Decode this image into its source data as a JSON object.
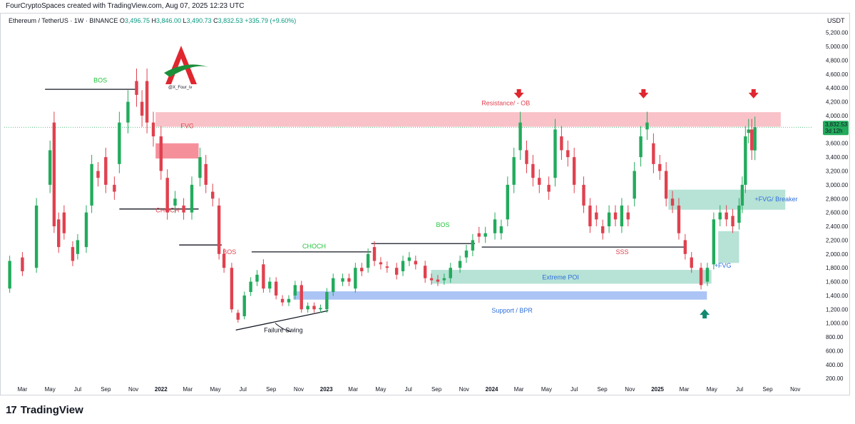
{
  "header": {
    "credit": "FourCryptoSpaces created with TradingView.com, Aug 07, 2025 12:23 UTC",
    "symbol": "Ethereum / TetherUS · 1W · BINANCE",
    "open_label": "O",
    "open": "3,496.75",
    "high_label": "H",
    "high": "3,846.00",
    "low_label": "L",
    "low": "3,490.73",
    "close_label": "C",
    "close": "3,832.53",
    "change": "+335.79 (+9.60%)",
    "currency": "USDT"
  },
  "logo": {
    "handle": "@X_Four_iv"
  },
  "price_tag": {
    "price": "3,832.53",
    "countdown": "3d 12h"
  },
  "footer": {
    "brand": "TradingView",
    "brand_mark": "17"
  },
  "colors": {
    "up": "#22ab5c",
    "down": "#e0414f",
    "resistance": "#f7a8b0",
    "fvg_zone": "#f26b7a",
    "support": "#8fb0f2",
    "poi": "#9fd8c8",
    "label_green": "#22c43c",
    "label_red": "#e0414f",
    "label_blue": "#2f6fdb"
  },
  "chart_data": {
    "type": "candlestick",
    "title": "",
    "xlabel": "",
    "ylabel": "",
    "ylim": [
      120,
      5300
    ],
    "y_ticks": [
      200,
      400,
      600,
      800,
      1000,
      1200,
      1400,
      1600,
      1800,
      2000,
      2200,
      2400,
      2600,
      2800,
      3000,
      3200,
      3400,
      3600,
      3800,
      4000,
      4200,
      4400,
      4600,
      4800,
      5000,
      5200
    ],
    "y_tick_labels": [
      "200.00",
      "400.00",
      "600.00",
      "800.00",
      "1,000.00",
      "1,200.00",
      "1,400.00",
      "1,600.00",
      "1,800.00",
      "2,000.00",
      "2,200.00",
      "2,400.00",
      "2,600.00",
      "2,800.00",
      "3,000.00",
      "3,200.00",
      "3,400.00",
      "3,600.00",
      "3,800.00",
      "4,000.00",
      "4,200.00",
      "4,400.00",
      "4,600.00",
      "4,800.00",
      "5,000.00",
      "5,200.00"
    ],
    "x_ticks": [
      {
        "label": "Mar",
        "x": "2021-03-01"
      },
      {
        "label": "May",
        "x": "2021-05-01"
      },
      {
        "label": "Jul",
        "x": "2021-07-01"
      },
      {
        "label": "Sep",
        "x": "2021-09-01"
      },
      {
        "label": "Nov",
        "x": "2021-11-01"
      },
      {
        "label": "2022",
        "x": "2022-01-01",
        "bold": true
      },
      {
        "label": "Mar",
        "x": "2022-03-01"
      },
      {
        "label": "May",
        "x": "2022-05-01"
      },
      {
        "label": "Jul",
        "x": "2022-07-01"
      },
      {
        "label": "Sep",
        "x": "2022-09-01"
      },
      {
        "label": "Nov",
        "x": "2022-11-01"
      },
      {
        "label": "2023",
        "x": "2023-01-01",
        "bold": true
      },
      {
        "label": "Mar",
        "x": "2023-03-01"
      },
      {
        "label": "May",
        "x": "2023-05-01"
      },
      {
        "label": "Jul",
        "x": "2023-07-01"
      },
      {
        "label": "Sep",
        "x": "2023-09-01"
      },
      {
        "label": "Nov",
        "x": "2023-11-01"
      },
      {
        "label": "2024",
        "x": "2024-01-01",
        "bold": true
      },
      {
        "label": "Mar",
        "x": "2024-03-01"
      },
      {
        "label": "May",
        "x": "2024-05-01"
      },
      {
        "label": "Jul",
        "x": "2024-07-01"
      },
      {
        "label": "Sep",
        "x": "2024-09-01"
      },
      {
        "label": "Nov",
        "x": "2024-11-01"
      },
      {
        "label": "2025",
        "x": "2025-01-01",
        "bold": true
      },
      {
        "label": "Mar",
        "x": "2025-03-01"
      },
      {
        "label": "May",
        "x": "2025-05-01"
      },
      {
        "label": "Jul",
        "x": "2025-07-01"
      },
      {
        "label": "Sep",
        "x": "2025-09-01"
      },
      {
        "label": "Nov",
        "x": "2025-11-01"
      }
    ],
    "series": [
      {
        "candles": [
          [
            "2021-02-01",
            1500,
            1900
          ],
          [
            "2021-03-01",
            1950,
            1750
          ],
          [
            "2021-04-01",
            1800,
            2700
          ],
          [
            "2021-05-01",
            3000,
            3500
          ],
          [
            "2021-05-10",
            3900,
            2400
          ],
          [
            "2021-05-20",
            2500,
            2100
          ],
          [
            "2021-06-01",
            2600,
            2300
          ],
          [
            "2021-06-20",
            2100,
            1900
          ],
          [
            "2021-07-01",
            2000,
            2200
          ],
          [
            "2021-07-20",
            2100,
            2600
          ],
          [
            "2021-08-01",
            2700,
            3300
          ],
          [
            "2021-08-15",
            3200,
            3100
          ],
          [
            "2021-09-01",
            3400,
            3000
          ],
          [
            "2021-09-20",
            3000,
            2900
          ],
          [
            "2021-10-01",
            3300,
            3900
          ],
          [
            "2021-10-20",
            3900,
            4200
          ],
          [
            "2021-11-08",
            4500,
            4300
          ],
          [
            "2021-11-20",
            4200,
            4000
          ],
          [
            "2021-12-01",
            4500,
            3900
          ],
          [
            "2021-12-15",
            3900,
            3700
          ],
          [
            "2022-01-01",
            3700,
            3200
          ],
          [
            "2022-01-15",
            3100,
            2600
          ],
          [
            "2022-02-01",
            2700,
            2800
          ],
          [
            "2022-02-20",
            2700,
            2600
          ],
          [
            "2022-03-10",
            2600,
            3000
          ],
          [
            "2022-03-28",
            3100,
            3400
          ],
          [
            "2022-04-10",
            3300,
            3000
          ],
          [
            "2022-04-25",
            2900,
            2800
          ],
          [
            "2022-05-09",
            2700,
            2000
          ],
          [
            "2022-05-20",
            2000,
            1800
          ],
          [
            "2022-06-06",
            1800,
            1200
          ],
          [
            "2022-06-20",
            1150,
            1050
          ],
          [
            "2022-07-04",
            1100,
            1400
          ],
          [
            "2022-07-18",
            1450,
            1600
          ],
          [
            "2022-08-01",
            1600,
            1700
          ],
          [
            "2022-08-15",
            1850,
            1500
          ],
          [
            "2022-08-29",
            1500,
            1600
          ],
          [
            "2022-09-12",
            1600,
            1400
          ],
          [
            "2022-09-26",
            1350,
            1300
          ],
          [
            "2022-10-10",
            1300,
            1350
          ],
          [
            "2022-10-24",
            1400,
            1550
          ],
          [
            "2022-11-07",
            1550,
            1200
          ],
          [
            "2022-11-21",
            1200,
            1250
          ],
          [
            "2022-12-05",
            1250,
            1200
          ],
          [
            "2022-12-19",
            1200,
            1220
          ],
          [
            "2023-01-02",
            1200,
            1450
          ],
          [
            "2023-01-16",
            1450,
            1650
          ],
          [
            "2023-02-06",
            1600,
            1650
          ],
          [
            "2023-02-20",
            1650,
            1600
          ],
          [
            "2023-03-06",
            1500,
            1800
          ],
          [
            "2023-03-20",
            1800,
            1750
          ],
          [
            "2023-04-03",
            1800,
            2000
          ],
          [
            "2023-04-17",
            2100,
            1900
          ],
          [
            "2023-05-01",
            1880,
            1850
          ],
          [
            "2023-05-15",
            1820,
            1800
          ],
          [
            "2023-06-05",
            1800,
            1700
          ],
          [
            "2023-06-19",
            1750,
            1900
          ],
          [
            "2023-07-03",
            1900,
            1950
          ],
          [
            "2023-07-17",
            1900,
            1850
          ],
          [
            "2023-08-07",
            1830,
            1650
          ],
          [
            "2023-08-21",
            1650,
            1620
          ],
          [
            "2023-09-04",
            1630,
            1600
          ],
          [
            "2023-09-18",
            1620,
            1650
          ],
          [
            "2023-10-02",
            1650,
            1800
          ],
          [
            "2023-10-23",
            1800,
            1900
          ],
          [
            "2023-11-06",
            1950,
            2050
          ],
          [
            "2023-11-20",
            2050,
            2200
          ],
          [
            "2023-12-04",
            2300,
            2250
          ],
          [
            "2023-12-18",
            2250,
            2300
          ],
          [
            "2024-01-08",
            2300,
            2500
          ],
          [
            "2024-01-22",
            2300,
            2400
          ],
          [
            "2024-02-05",
            2500,
            3000
          ],
          [
            "2024-02-19",
            3000,
            3400
          ],
          [
            "2024-03-04",
            3500,
            3900
          ],
          [
            "2024-03-18",
            3500,
            3300
          ],
          [
            "2024-04-01",
            3300,
            3100
          ],
          [
            "2024-04-15",
            3100,
            3000
          ],
          [
            "2024-05-06",
            3000,
            2900
          ],
          [
            "2024-05-20",
            3100,
            3800
          ],
          [
            "2024-06-03",
            3700,
            3500
          ],
          [
            "2024-06-17",
            3500,
            3400
          ],
          [
            "2024-07-01",
            3400,
            3000
          ],
          [
            "2024-07-22",
            3000,
            2700
          ],
          [
            "2024-08-05",
            2700,
            2400
          ],
          [
            "2024-08-19",
            2600,
            2500
          ],
          [
            "2024-09-02",
            2400,
            2300
          ],
          [
            "2024-09-16",
            2400,
            2600
          ],
          [
            "2024-09-30",
            2600,
            2500
          ],
          [
            "2024-10-14",
            2400,
            2700
          ],
          [
            "2024-10-28",
            2600,
            2500
          ],
          [
            "2024-11-11",
            2800,
            3200
          ],
          [
            "2024-11-25",
            3400,
            3700
          ],
          [
            "2024-12-09",
            3800,
            3900
          ],
          [
            "2024-12-23",
            3600,
            3300
          ],
          [
            "2025-01-06",
            3300,
            3200
          ],
          [
            "2025-01-20",
            3200,
            2800
          ],
          [
            "2025-02-03",
            2800,
            2700
          ],
          [
            "2025-02-17",
            2700,
            2300
          ],
          [
            "2025-03-03",
            2200,
            2000
          ],
          [
            "2025-03-17",
            1950,
            1800
          ],
          [
            "2025-04-07",
            1800,
            1550
          ],
          [
            "2025-04-21",
            1600,
            1800
          ],
          [
            "2025-05-05",
            1850,
            2500
          ],
          [
            "2025-05-19",
            2500,
            2600
          ],
          [
            "2025-06-02",
            2600,
            2500
          ],
          [
            "2025-06-16",
            2550,
            2400
          ],
          [
            "2025-06-30",
            2450,
            2700
          ],
          [
            "2025-07-07",
            2700,
            3000
          ],
          [
            "2025-07-14",
            3000,
            3700
          ],
          [
            "2025-07-21",
            3750,
            3800
          ],
          [
            "2025-07-28",
            3800,
            3500
          ],
          [
            "2025-08-04",
            3496.75,
            3832.53
          ]
        ]
      }
    ],
    "annotations": [
      {
        "text": "BOS",
        "color": "green",
        "x": "2021-08-20",
        "y": 4480
      },
      {
        "text": "FVG",
        "color": "red",
        "x": "2022-02-28",
        "y": 3820
      },
      {
        "text": "CHOCH",
        "color": "red",
        "x": "2022-01-15",
        "y": 2600
      },
      {
        "text": "BOS",
        "color": "red",
        "x": "2022-06-01",
        "y": 2000
      },
      {
        "text": "CHOCH",
        "color": "green",
        "x": "2022-12-05",
        "y": 2080
      },
      {
        "text": "BOS",
        "color": "green",
        "x": "2023-09-15",
        "y": 2390
      },
      {
        "text": "SSS",
        "color": "red",
        "x": "2024-10-15",
        "y": 2000
      },
      {
        "text": "Resistance/ - OB",
        "color": "red",
        "x": "2024-02-01",
        "y": 4150
      },
      {
        "text": "Extreme POI",
        "color": "blue",
        "x": "2024-06-01",
        "y": 1630
      },
      {
        "text": "Support / BPR",
        "color": "blue",
        "x": "2024-02-15",
        "y": 1150
      },
      {
        "text": "+FVG/ Breaker",
        "color": "blue",
        "x": "2025-09-20",
        "y": 2760
      },
      {
        "text": "+FVG",
        "color": "blue",
        "x": "2025-05-25",
        "y": 1800
      },
      {
        "text": "Failure Swing",
        "color": "black",
        "x": "2022-09-28",
        "y": 870
      }
    ],
    "zones": [
      {
        "name": "resistance",
        "x0": "2021-12-20",
        "x1": "2025-09-30",
        "y0": 3840,
        "y1": 4050
      },
      {
        "name": "fvg",
        "x0": "2021-12-20",
        "x1": "2022-03-25",
        "y0": 3380,
        "y1": 3600
      },
      {
        "name": "poi",
        "x0": "2023-08-20",
        "x1": "2025-04-30",
        "y0": 1570,
        "y1": 1770
      },
      {
        "name": "support",
        "x0": "2022-10-20",
        "x1": "2025-04-20",
        "y0": 1340,
        "y1": 1460
      },
      {
        "name": "breaker",
        "x0": "2025-01-25",
        "x1": "2025-10-10",
        "y0": 2640,
        "y1": 2930
      },
      {
        "name": "plus_fvg",
        "x0": "2025-05-15",
        "x1": "2025-06-30",
        "y0": 1870,
        "y1": 2330
      }
    ],
    "lines": [
      {
        "name": "bos-line-2021",
        "x0": "2021-04-20",
        "x1": "2021-11-05",
        "y": 4380
      },
      {
        "name": "choch-line-2022",
        "x0": "2021-10-01",
        "x1": "2022-03-25",
        "y": 2650
      },
      {
        "name": "bos-line-2022",
        "x0": "2022-02-10",
        "x1": "2022-05-15",
        "y": 2130
      },
      {
        "name": "choch-line-2023",
        "x0": "2022-07-20",
        "x1": "2023-04-10",
        "y": 2030
      },
      {
        "name": "bos-line-2023",
        "x0": "2023-04-10",
        "x1": "2023-11-25",
        "y": 2150
      },
      {
        "name": "sss-line",
        "x0": "2023-12-10",
        "x1": "2025-03-01",
        "y": 2100
      },
      {
        "name": "failure-swing-line",
        "x0": "2022-06-15",
        "x1": "2023-01-05",
        "y0": 900,
        "y1": 1180,
        "sloped": true
      }
    ],
    "arrows": [
      {
        "dir": "down",
        "color": "red",
        "x": "2024-03-01",
        "y": 4300
      },
      {
        "dir": "down",
        "color": "red",
        "x": "2024-12-01",
        "y": 4300
      },
      {
        "dir": "down",
        "color": "red",
        "x": "2025-08-01",
        "y": 4300
      },
      {
        "dir": "up",
        "color": "teal",
        "x": "2025-04-15",
        "y": 1150
      }
    ],
    "current_price": 3832.53,
    "grid": false,
    "legend": "none"
  }
}
